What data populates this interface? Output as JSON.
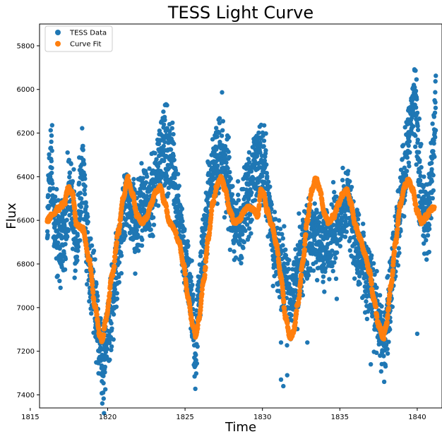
{
  "chart_data": {
    "type": "scatter",
    "title": "TESS Light Curve",
    "xlabel": "Time",
    "ylabel": "Flux",
    "xlim": [
      1815.6,
      1841.6
    ],
    "ylim": [
      7460,
      5700
    ],
    "y_inverted": true,
    "xticks": [
      1815,
      1820,
      1825,
      1830,
      1835,
      1840
    ],
    "yticks": [
      5800,
      6000,
      6200,
      6400,
      6600,
      6800,
      7000,
      7200,
      7400
    ],
    "grid": false,
    "legend_position": "top-left",
    "series": [
      {
        "name": "TESS Data",
        "color": "#1f77b4",
        "anchors": [
          [
            1816.1,
            6590
          ],
          [
            1816.2,
            6450
          ],
          [
            1816.35,
            6300
          ],
          [
            1816.5,
            6560
          ],
          [
            1816.7,
            6650
          ],
          [
            1816.9,
            6720
          ],
          [
            1817.2,
            6650
          ],
          [
            1817.5,
            6480
          ],
          [
            1817.75,
            6580
          ],
          [
            1818.0,
            6720
          ],
          [
            1818.2,
            6500
          ],
          [
            1818.4,
            6350
          ],
          [
            1818.6,
            6650
          ],
          [
            1818.9,
            6830
          ],
          [
            1819.2,
            7000
          ],
          [
            1819.5,
            7180
          ],
          [
            1819.75,
            7280
          ],
          [
            1820.0,
            7120
          ],
          [
            1820.3,
            6980
          ],
          [
            1820.6,
            6800
          ],
          [
            1820.9,
            6620
          ],
          [
            1821.2,
            6480
          ],
          [
            1821.5,
            6520
          ],
          [
            1821.8,
            6620
          ],
          [
            1822.1,
            6560
          ],
          [
            1822.4,
            6500
          ],
          [
            1822.7,
            6550
          ],
          [
            1823.0,
            6450
          ],
          [
            1823.3,
            6330
          ],
          [
            1823.6,
            6280
          ],
          [
            1823.9,
            6300
          ],
          [
            1824.2,
            6320
          ],
          [
            1824.5,
            6560
          ],
          [
            1824.8,
            6700
          ],
          [
            1825.1,
            6800
          ],
          [
            1825.4,
            6950
          ],
          [
            1825.65,
            7200
          ],
          [
            1825.9,
            6950
          ],
          [
            1826.2,
            6700
          ],
          [
            1826.5,
            6500
          ],
          [
            1826.8,
            6380
          ],
          [
            1827.1,
            6350
          ],
          [
            1827.4,
            6250
          ],
          [
            1827.7,
            6400
          ],
          [
            1828.0,
            6550
          ],
          [
            1828.3,
            6620
          ],
          [
            1828.6,
            6620
          ],
          [
            1828.9,
            6540
          ],
          [
            1829.2,
            6480
          ],
          [
            1829.5,
            6380
          ],
          [
            1829.8,
            6320
          ],
          [
            1830.1,
            6380
          ],
          [
            1830.4,
            6500
          ],
          [
            1830.7,
            6680
          ],
          [
            1831.0,
            6750
          ],
          [
            1831.3,
            6830
          ],
          [
            1831.6,
            6920
          ],
          [
            1831.9,
            6950
          ],
          [
            1832.2,
            6850
          ],
          [
            1832.5,
            6780
          ],
          [
            1832.8,
            6720
          ],
          [
            1833.1,
            6680
          ],
          [
            1833.4,
            6660
          ],
          [
            1833.7,
            6700
          ],
          [
            1834.0,
            6750
          ],
          [
            1834.3,
            6700
          ],
          [
            1834.6,
            6650
          ],
          [
            1834.9,
            6600
          ],
          [
            1835.2,
            6550
          ],
          [
            1835.5,
            6500
          ],
          [
            1835.8,
            6650
          ],
          [
            1836.1,
            6720
          ],
          [
            1836.4,
            6750
          ],
          [
            1836.7,
            6850
          ],
          [
            1837.0,
            6920
          ],
          [
            1837.3,
            6980
          ],
          [
            1837.6,
            7100
          ],
          [
            1837.9,
            7160
          ],
          [
            1838.2,
            6980
          ],
          [
            1838.5,
            6780
          ],
          [
            1838.8,
            6600
          ],
          [
            1839.1,
            6420
          ],
          [
            1839.4,
            6250
          ],
          [
            1839.7,
            6050
          ],
          [
            1839.9,
            6100
          ],
          [
            1840.2,
            6450
          ],
          [
            1840.5,
            6600
          ],
          [
            1840.8,
            6520
          ],
          [
            1841.0,
            6300
          ],
          [
            1841.2,
            6050
          ]
        ],
        "scatter": 90,
        "outliers": [
          [
            1831.2,
            7330
          ],
          [
            1831.35,
            7360
          ],
          [
            1831.6,
            7310
          ],
          [
            1831.2,
            7160
          ],
          [
            1832.9,
            7160
          ],
          [
            1834.8,
            6960
          ],
          [
            1835.6,
            6420
          ],
          [
            1837.0,
            7260
          ],
          [
            1837.6,
            7220
          ],
          [
            1840.0,
            7120
          ],
          [
            1830.6,
            6690
          ],
          [
            1840.9,
            6590
          ]
        ]
      },
      {
        "name": "Curve Fit",
        "color": "#ff7f0e",
        "anchors": [
          [
            1816.1,
            6600
          ],
          [
            1816.5,
            6570
          ],
          [
            1816.9,
            6540
          ],
          [
            1817.2,
            6520
          ],
          [
            1817.45,
            6450
          ],
          [
            1817.7,
            6470
          ],
          [
            1818.0,
            6620
          ],
          [
            1818.4,
            6640
          ],
          [
            1818.8,
            6780
          ],
          [
            1819.2,
            7000
          ],
          [
            1819.5,
            7130
          ],
          [
            1819.65,
            7150
          ],
          [
            1819.9,
            7050
          ],
          [
            1820.3,
            6850
          ],
          [
            1820.7,
            6650
          ],
          [
            1821.0,
            6500
          ],
          [
            1821.3,
            6410
          ],
          [
            1821.6,
            6480
          ],
          [
            1821.9,
            6580
          ],
          [
            1822.2,
            6610
          ],
          [
            1822.5,
            6590
          ],
          [
            1822.8,
            6530
          ],
          [
            1823.1,
            6470
          ],
          [
            1823.4,
            6450
          ],
          [
            1823.7,
            6520
          ],
          [
            1824.0,
            6610
          ],
          [
            1824.3,
            6640
          ],
          [
            1824.6,
            6700
          ],
          [
            1824.9,
            6800
          ],
          [
            1825.2,
            6960
          ],
          [
            1825.5,
            7080
          ],
          [
            1825.7,
            7130
          ],
          [
            1825.9,
            7050
          ],
          [
            1826.2,
            6880
          ],
          [
            1826.5,
            6680
          ],
          [
            1826.8,
            6520
          ],
          [
            1827.1,
            6430
          ],
          [
            1827.35,
            6410
          ],
          [
            1827.6,
            6460
          ],
          [
            1827.9,
            6560
          ],
          [
            1828.2,
            6610
          ],
          [
            1828.5,
            6600
          ],
          [
            1828.8,
            6560
          ],
          [
            1829.1,
            6540
          ],
          [
            1829.4,
            6550
          ],
          [
            1829.7,
            6580
          ],
          [
            1829.9,
            6460
          ],
          [
            1830.1,
            6480
          ],
          [
            1830.3,
            6560
          ],
          [
            1830.6,
            6620
          ],
          [
            1830.9,
            6710
          ],
          [
            1831.2,
            6860
          ],
          [
            1831.5,
            7050
          ],
          [
            1831.8,
            7140
          ],
          [
            1832.0,
            7110
          ],
          [
            1832.3,
            6980
          ],
          [
            1832.6,
            6800
          ],
          [
            1832.9,
            6600
          ],
          [
            1833.2,
            6460
          ],
          [
            1833.45,
            6410
          ],
          [
            1833.7,
            6460
          ],
          [
            1834.0,
            6570
          ],
          [
            1834.3,
            6610
          ],
          [
            1834.6,
            6580
          ],
          [
            1834.9,
            6530
          ],
          [
            1835.2,
            6480
          ],
          [
            1835.45,
            6460
          ],
          [
            1835.7,
            6520
          ],
          [
            1836.0,
            6620
          ],
          [
            1836.3,
            6680
          ],
          [
            1836.6,
            6750
          ],
          [
            1836.9,
            6830
          ],
          [
            1837.2,
            6960
          ],
          [
            1837.5,
            7080
          ],
          [
            1837.8,
            7140
          ],
          [
            1838.0,
            7080
          ],
          [
            1838.3,
            6900
          ],
          [
            1838.6,
            6700
          ],
          [
            1838.9,
            6530
          ],
          [
            1839.2,
            6440
          ],
          [
            1839.45,
            6420
          ],
          [
            1839.7,
            6460
          ],
          [
            1840.0,
            6560
          ],
          [
            1840.3,
            6610
          ],
          [
            1840.6,
            6580
          ],
          [
            1840.9,
            6550
          ],
          [
            1841.1,
            6540
          ]
        ],
        "scatter": 5
      }
    ]
  }
}
